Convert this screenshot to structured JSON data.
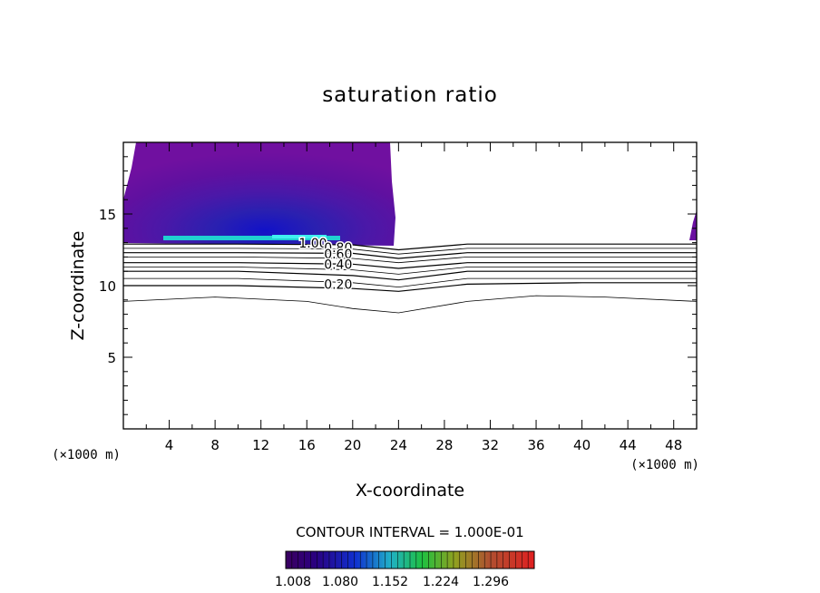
{
  "chart_data": {
    "type": "contour",
    "title": "saturation ratio",
    "xlabel": "X-coordinate",
    "ylabel": "Z-coordinate",
    "x_unit_left": "(×1000 m)",
    "x_unit_right": "(×1000 m)",
    "xlim": [
      0,
      50
    ],
    "ylim": [
      0,
      20
    ],
    "x_ticks": [
      4,
      8,
      12,
      16,
      20,
      24,
      28,
      32,
      36,
      40,
      44,
      48
    ],
    "y_ticks": [
      5,
      10,
      15
    ],
    "contour_interval_label": "CONTOUR INTERVAL = 1.000E-01",
    "colorbar": {
      "labels": [
        "1.008",
        "1.080",
        "1.152",
        "1.224",
        "1.296"
      ],
      "range": [
        1.008,
        1.32
      ]
    },
    "contour_labels": [
      {
        "text": "1.00",
        "x": 15.3,
        "z": 12.98
      },
      {
        "text": "0.80",
        "x": 17.5,
        "z": 12.65
      },
      {
        "text": "0.60",
        "x": 17.5,
        "z": 12.2
      },
      {
        "text": "0.40",
        "x": 17.5,
        "z": 11.5
      },
      {
        "text": "0.20",
        "x": 17.5,
        "z": 10.1
      }
    ],
    "contour_lines": [
      {
        "level": 1.0,
        "x": [
          0,
          10,
          20,
          24,
          30,
          40,
          50
        ],
        "z": [
          12.9,
          12.9,
          12.85,
          12.5,
          12.9,
          12.9,
          12.9
        ]
      },
      {
        "level": 0.9,
        "x": [
          0,
          10,
          20,
          24,
          30,
          40,
          50
        ],
        "z": [
          12.6,
          12.6,
          12.55,
          12.2,
          12.6,
          12.6,
          12.6
        ]
      },
      {
        "level": 0.8,
        "x": [
          0,
          10,
          20,
          24,
          30,
          40,
          50
        ],
        "z": [
          12.3,
          12.3,
          12.25,
          11.9,
          12.3,
          12.3,
          12.3
        ]
      },
      {
        "level": 0.7,
        "x": [
          0,
          10,
          20,
          24,
          30,
          40,
          50
        ],
        "z": [
          12.0,
          12.0,
          11.9,
          11.6,
          12.0,
          12.0,
          12.0
        ]
      },
      {
        "level": 0.6,
        "x": [
          0,
          10,
          20,
          24,
          30,
          40,
          50
        ],
        "z": [
          11.6,
          11.6,
          11.5,
          11.2,
          11.6,
          11.6,
          11.6
        ]
      },
      {
        "level": 0.5,
        "x": [
          0,
          10,
          20,
          24,
          30,
          40,
          50
        ],
        "z": [
          11.3,
          11.3,
          11.1,
          10.8,
          11.3,
          11.3,
          11.3
        ]
      },
      {
        "level": 0.4,
        "x": [
          0,
          10,
          20,
          24,
          30,
          40,
          50
        ],
        "z": [
          11.0,
          11.0,
          10.7,
          10.4,
          11.0,
          11.0,
          11.0
        ]
      },
      {
        "level": 0.3,
        "x": [
          0,
          10,
          20,
          24,
          30,
          40,
          50
        ],
        "z": [
          10.5,
          10.5,
          10.2,
          9.9,
          10.5,
          10.5,
          10.5
        ]
      },
      {
        "level": 0.2,
        "x": [
          0,
          10,
          20,
          24,
          30,
          40,
          50
        ],
        "z": [
          10.0,
          10.0,
          9.8,
          9.6,
          10.1,
          10.2,
          10.2
        ]
      },
      {
        "level": 0.1,
        "x": [
          0,
          8,
          16,
          20,
          24,
          30,
          36,
          42,
          50
        ],
        "z": [
          8.9,
          9.2,
          8.9,
          8.4,
          8.1,
          8.9,
          9.3,
          9.2,
          8.9
        ]
      }
    ]
  }
}
